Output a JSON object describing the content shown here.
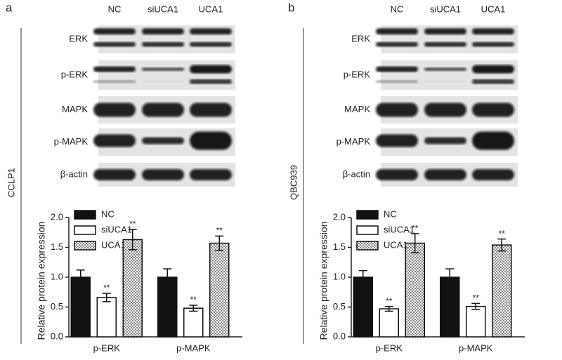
{
  "panels": [
    {
      "label": "a",
      "cell_line": "CCLP1",
      "lanes": [
        "NC",
        "siUCA1",
        "UCA1"
      ],
      "blots": [
        "ERK",
        "p-ERK",
        "MAPK",
        "p-MAPK",
        "β-actin"
      ]
    },
    {
      "label": "b",
      "cell_line": "QBC939",
      "lanes": [
        "NC",
        "siUCA1",
        "UCA1"
      ],
      "blots": [
        "ERK",
        "p-ERK",
        "MAPK",
        "p-MAPK",
        "β-actin"
      ]
    }
  ],
  "chart_data": [
    {
      "type": "bar",
      "ylabel": "Relative protein expression",
      "categories": [
        "p-ERK",
        "p-MAPK"
      ],
      "series": [
        {
          "name": "NC",
          "color": "#111111",
          "values": [
            1.0,
            1.0
          ],
          "errors": [
            0.12,
            0.14
          ]
        },
        {
          "name": "siUCA1",
          "color": "#ffffff",
          "values": [
            0.66,
            0.48
          ],
          "errors": [
            0.07,
            0.05
          ],
          "annotations": [
            "**",
            "**"
          ]
        },
        {
          "name": "UCA1",
          "color": "#ffffff",
          "pattern": "dots",
          "values": [
            1.63,
            1.57
          ],
          "errors": [
            0.17,
            0.12
          ],
          "annotations": [
            "**",
            "**"
          ]
        }
      ],
      "ylim": [
        0,
        2.0
      ],
      "yticks": [
        {
          "value": 0,
          "label": "0.0"
        },
        {
          "value": 0.5,
          "label": "0.5"
        },
        {
          "value": 1.0,
          "label": "1.0"
        },
        {
          "value": 1.5,
          "label": "1.5"
        },
        {
          "value": 2.0,
          "label": "2.0"
        }
      ],
      "legend": "top-left"
    },
    {
      "type": "bar",
      "ylabel": "Relative protein expression",
      "categories": [
        "p-ERK",
        "p-MAPK"
      ],
      "series": [
        {
          "name": "NC",
          "color": "#111111",
          "values": [
            1.0,
            1.0
          ],
          "errors": [
            0.11,
            0.14
          ]
        },
        {
          "name": "siUCA1",
          "color": "#ffffff",
          "values": [
            0.47,
            0.51
          ],
          "errors": [
            0.04,
            0.05
          ],
          "annotations": [
            "**",
            "**"
          ]
        },
        {
          "name": "UCA1",
          "color": "#ffffff",
          "pattern": "dots",
          "values": [
            1.57,
            1.54
          ],
          "errors": [
            0.16,
            0.1
          ],
          "annotations": [
            "**",
            "**"
          ]
        }
      ],
      "ylim": [
        0,
        2.0
      ],
      "yticks": [
        {
          "value": 0,
          "label": "0.0"
        },
        {
          "value": 0.5,
          "label": "0.5"
        },
        {
          "value": 1.0,
          "label": "1.0"
        },
        {
          "value": 1.5,
          "label": "1.5"
        },
        {
          "value": 2.0,
          "label": "2.0"
        }
      ],
      "legend": "top-left"
    }
  ]
}
